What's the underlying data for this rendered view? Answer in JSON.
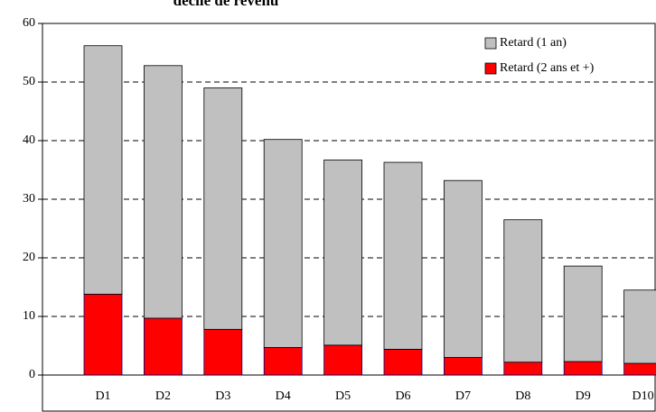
{
  "chart_data": {
    "type": "stacked-bar",
    "title": "décile de revenu",
    "categories": [
      "D1",
      "D2",
      "D3",
      "D4",
      "D5",
      "D6",
      "D7",
      "D8",
      "D9",
      "D10"
    ],
    "series": [
      {
        "name": "Retard (2 ans et +)",
        "color": "#ff0000",
        "values": [
          13.8,
          9.7,
          7.8,
          4.7,
          5.1,
          4.4,
          3.0,
          2.2,
          2.3,
          2.0
        ]
      },
      {
        "name": "Retard (1 an)",
        "color": "#c0c0c0",
        "values": [
          42.4,
          43.1,
          41.2,
          35.5,
          31.6,
          31.9,
          30.2,
          24.3,
          16.3,
          12.5
        ]
      }
    ],
    "ylim": [
      0,
      60
    ],
    "yticks": [
      0,
      10,
      20,
      30,
      40,
      50,
      60
    ],
    "grid": true
  }
}
